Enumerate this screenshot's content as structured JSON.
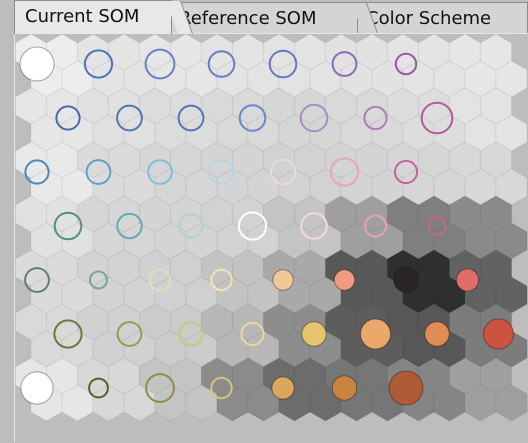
{
  "tabs": [
    {
      "label": "Current SOM",
      "active": true
    },
    {
      "label": "Reference SOM",
      "active": false
    },
    {
      "label": "Color Scheme",
      "active": false
    }
  ],
  "som": {
    "columns": 8,
    "rows": 7,
    "cell_grays": [
      [
        "#ededed",
        "#e4e4e4",
        "#e6e6e6",
        "#e3e3e3",
        "#e3e3e3",
        "#e2e2e2",
        "#e4e4e4",
        "#e6e6e6"
      ],
      [
        "#e6e6e6",
        "#e0e0e0",
        "#dcdcdc",
        "#d9d9d9",
        "#d6d6d6",
        "#d9d9d9",
        "#dddddd",
        "#e3e3e3"
      ],
      [
        "#e9e9e9",
        "#dbdbdb",
        "#d6d6d6",
        "#d4d4d4",
        "#d2d2d2",
        "#d4d4d4",
        "#d6d6d6",
        "#d8d8d8"
      ],
      [
        "#e1e1e1",
        "#d6d6d6",
        "#d4d4d4",
        "#d2d2d2",
        "#c4c4c4",
        "#9f9f9f",
        "#7f7f7f",
        "#8a8a8a"
      ],
      [
        "#dbdbdb",
        "#d3d3d3",
        "#d0d0d0",
        "#c3c3c3",
        "#a9a9a9",
        "#585858",
        "#2f2f2f",
        "#626262"
      ],
      [
        "#d9d9d9",
        "#d1d1d1",
        "#cbcbcb",
        "#b7b7b7",
        "#8d8d8d",
        "#5d5d5d",
        "#575757",
        "#7c7c7c"
      ],
      [
        "#e6e6e6",
        "#d8d8d8",
        "#c4c4c4",
        "#8b8b8b",
        "#6c6c6c",
        "#767676",
        "#858585",
        "#9f9f9f"
      ]
    ],
    "nodes": [
      [
        {
          "size": 1.0,
          "color": "#ffffff",
          "outline": false
        },
        {
          "size": 0.8,
          "color": "#4f72b8",
          "outline": true
        },
        {
          "size": 0.85,
          "color": "#6b7fc2",
          "outline": true
        },
        {
          "size": 0.75,
          "color": "#6a7cc4",
          "outline": true
        },
        {
          "size": 0.78,
          "color": "#6877c0",
          "outline": true
        },
        {
          "size": 0.7,
          "color": "#8a6bb0",
          "outline": true
        },
        {
          "size": 0.6,
          "color": "#9a55a4",
          "outline": true
        },
        null
      ],
      [
        {
          "size": 0.68,
          "color": "#4c6aa2",
          "outline": true
        },
        {
          "size": 0.73,
          "color": "#4f78b6",
          "outline": true
        },
        {
          "size": 0.73,
          "color": "#5078b8",
          "outline": true
        },
        {
          "size": 0.75,
          "color": "#6a86cc",
          "outline": true
        },
        {
          "size": 0.78,
          "color": "#a78ec8",
          "outline": true
        },
        {
          "size": 0.65,
          "color": "#b07ab8",
          "outline": true
        },
        {
          "size": 0.9,
          "color": "#b45a9a",
          "outline": true
        },
        null
      ],
      [
        {
          "size": 0.68,
          "color": "#4f8ab2",
          "outline": true
        },
        {
          "size": 0.7,
          "color": "#5aa3c3",
          "outline": true
        },
        {
          "size": 0.7,
          "color": "#7fbfdc",
          "outline": true
        },
        {
          "size": 0.7,
          "color": "#b3d4e6",
          "outline": true
        },
        {
          "size": 0.72,
          "color": "#e8d9e8",
          "outline": true
        },
        {
          "size": 0.8,
          "color": "#e4a3c7",
          "outline": true
        },
        {
          "size": 0.65,
          "color": "#c8619a",
          "outline": true
        },
        null
      ],
      [
        {
          "size": 0.78,
          "color": "#52907e",
          "outline": true
        },
        {
          "size": 0.72,
          "color": "#6aa6b6",
          "outline": true
        },
        {
          "size": 0.68,
          "color": "#a8d4cf",
          "outline": true
        },
        {
          "size": 0.8,
          "color": "#ffffff",
          "outline": true
        },
        {
          "size": 0.75,
          "color": "#f3d9df",
          "outline": true
        },
        {
          "size": 0.62,
          "color": "#e3a5b1",
          "outline": true
        },
        {
          "size": 0.5,
          "color": "#c96a78",
          "outline": true
        },
        null
      ],
      [
        {
          "size": 0.7,
          "color": "#5e8466",
          "outline": true
        },
        {
          "size": 0.5,
          "color": "#7aa68a",
          "outline": true
        },
        {
          "size": 0.6,
          "color": "#d9e3b9",
          "outline": true
        },
        {
          "size": 0.6,
          "color": "#f2e4b4",
          "outline": true
        },
        {
          "size": 0.6,
          "color": "#f2c89a",
          "outline": false
        },
        {
          "size": 0.6,
          "color": "#f09a83",
          "outline": false
        },
        {
          "size": 0.72,
          "color": "#2b2626",
          "outline": false
        },
        {
          "size": 0.65,
          "color": "#e16c6a",
          "outline": false
        }
      ],
      [
        {
          "size": 0.8,
          "color": "#6a7a3c",
          "outline": true
        },
        {
          "size": 0.7,
          "color": "#909e52",
          "outline": true
        },
        {
          "size": 0.68,
          "color": "#c8c777",
          "outline": true
        },
        {
          "size": 0.65,
          "color": "#e9d8a0",
          "outline": true
        },
        {
          "size": 0.72,
          "color": "#e6c36c",
          "outline": false
        },
        {
          "size": 0.88,
          "color": "#eba86a",
          "outline": false
        },
        {
          "size": 0.72,
          "color": "#e08d55",
          "outline": false
        },
        {
          "size": 0.88,
          "color": "#cc5242",
          "outline": false
        }
      ],
      [
        {
          "size": 0.95,
          "color": "#ffffff",
          "outline": false
        },
        {
          "size": 0.55,
          "color": "#5b5e2c",
          "outline": true
        },
        {
          "size": 0.82,
          "color": "#8f8b4a",
          "outline": true
        },
        {
          "size": 0.6,
          "color": "#d5c47e",
          "outline": true
        },
        {
          "size": 0.65,
          "color": "#dca75c",
          "outline": false
        },
        {
          "size": 0.72,
          "color": "#c9853f",
          "outline": false
        },
        {
          "size": 1.0,
          "color": "#b05a36",
          "outline": false
        },
        null
      ]
    ]
  }
}
